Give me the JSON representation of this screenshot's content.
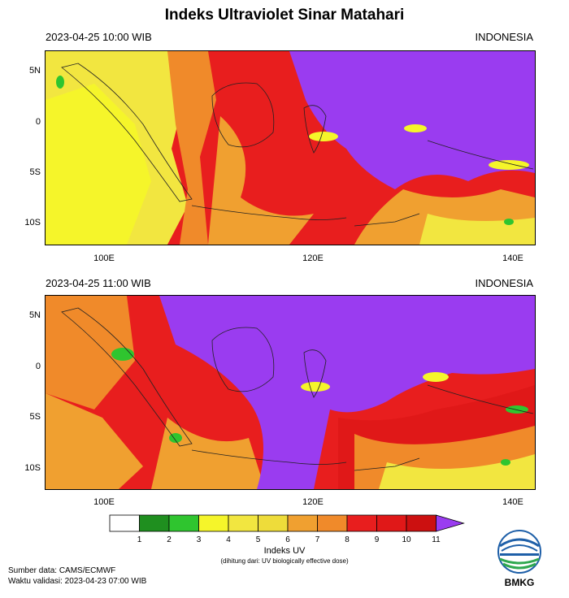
{
  "title": "Indeks Ultraviolet Sinar Matahari",
  "panels": [
    {
      "time": "2023-04-25  10:00 WIB",
      "region": "INDONESIA"
    },
    {
      "time": "2023-04-25  11:00 WIB",
      "region": "INDONESIA"
    }
  ],
  "lat_labels": [
    "5N",
    "0",
    "5S",
    "10S"
  ],
  "lon_labels": [
    "100E",
    "120E",
    "140E"
  ],
  "colorbar": {
    "title": "Indeks UV",
    "subtitle": "(dihitung dari: UV biologically effective dose)",
    "labels": [
      "1",
      "2",
      "3",
      "4",
      "5",
      "6",
      "7",
      "8",
      "9",
      "10",
      "11"
    ],
    "colors": [
      "#ffffff",
      "#1f8f1f",
      "#2fc52f",
      "#f5f52a",
      "#f2e640",
      "#eedc3a",
      "#f0a030",
      "#f08a2a",
      "#e81e1e",
      "#e01818",
      "#cc1010",
      "#9a3cf0"
    ]
  },
  "footer": {
    "source": "Sumber data: CAMS/ECMWF",
    "validity": "Waktu validasi: 2023-04-23 07:00 WIB"
  },
  "logo": {
    "text": "BMKG",
    "icon": "bmkg-logo-icon"
  }
}
